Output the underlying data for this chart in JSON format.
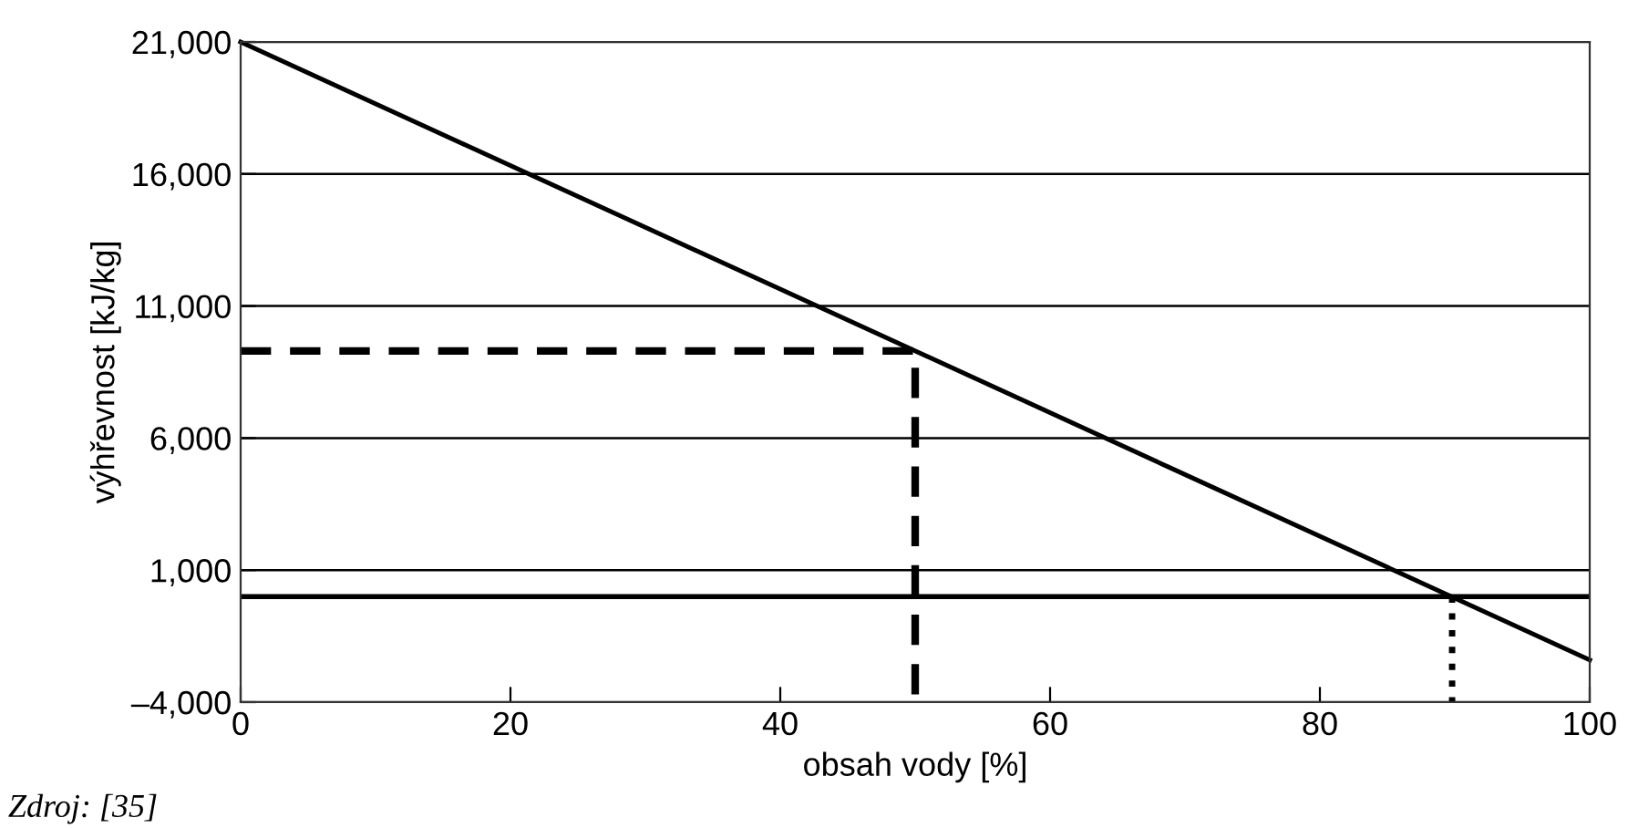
{
  "chart_data": {
    "type": "line",
    "xlabel": "obsah vody [%]",
    "ylabel": "výhřevnost [kJ/kg]",
    "xlim": [
      0,
      100
    ],
    "xticks": [
      0,
      20,
      40,
      60,
      80,
      100
    ],
    "ylim": [
      -4000,
      21000
    ],
    "yticks": [
      {
        "value": -4000,
        "label": "–4,000"
      },
      {
        "value": 1000,
        "label": "1,000"
      },
      {
        "value": 6000,
        "label": "6,000"
      },
      {
        "value": 11000,
        "label": "11,000"
      },
      {
        "value": 16000,
        "label": "16,000"
      },
      {
        "value": 21000,
        "label": "21,000"
      }
    ],
    "grid": "y",
    "legend": false,
    "marker": "none",
    "series": [
      {
        "x": [
          0,
          100
        ],
        "values": [
          21000,
          -2400
        ],
        "color": "#000000",
        "line_style": "solid"
      },
      {
        "x": [
          0,
          50,
          50
        ],
        "values": [
          9300,
          9300,
          -4000
        ],
        "color": "#000000",
        "line_style": "dashed"
      },
      {
        "x": [
          89.8,
          89.8
        ],
        "values": [
          0,
          -4000
        ],
        "color": "#000000",
        "line_style": "dotted"
      }
    ],
    "ref_lines": [
      {
        "axis": "y",
        "value": 0,
        "color": "#000000",
        "line_style": "solid"
      }
    ],
    "annotations": [
      "Zdroj: [35]"
    ]
  }
}
